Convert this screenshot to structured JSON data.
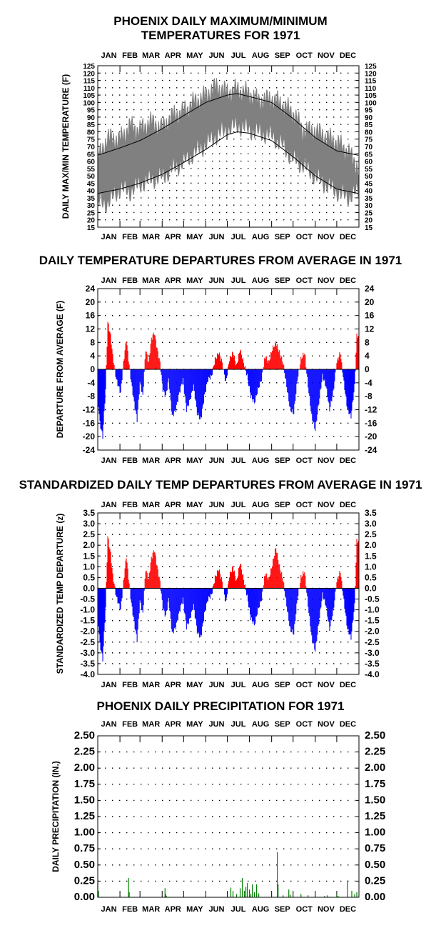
{
  "months": [
    "JAN",
    "FEB",
    "MAR",
    "APR",
    "MAY",
    "JUN",
    "JUL",
    "AUG",
    "SEP",
    "OCT",
    "NOV",
    "DEC"
  ],
  "chart_data": [
    {
      "type": "area",
      "title": "PHOENIX DAILY MAXIMUM/MINIMUM TEMPERATURES FOR 1971",
      "title_lines": [
        "PHOENIX DAILY MAXIMUM/MINIMUM",
        "TEMPERATURES FOR 1971"
      ],
      "ylabel": "DAILY MAX/MIN TEMPERATURE (F)",
      "xlabel": "",
      "ylim": [
        15,
        125
      ],
      "y_ticks": [
        "125",
        "120",
        "115",
        "110",
        "105",
        "100",
        "95",
        "90",
        "85",
        "80",
        "75",
        "70",
        "65",
        "60",
        "55",
        "50",
        "45",
        "40",
        "35",
        "30",
        "25",
        "20",
        "15"
      ],
      "x_categories": [
        "JAN",
        "FEB",
        "MAR",
        "APR",
        "MAY",
        "JUN",
        "JUL",
        "AUG",
        "SEP",
        "OCT",
        "NOV",
        "DEC"
      ],
      "grid": "dotted",
      "colors": {
        "band": "#808080",
        "normals": "#000000"
      },
      "series": [
        {
          "name": "",
          "kind": "observed_max",
          "x_day": [
            1,
            15,
            32,
            46,
            60,
            74,
            91,
            105,
            121,
            135,
            152,
            166,
            182,
            196,
            213,
            227,
            244,
            258,
            274,
            288,
            305,
            319,
            335,
            350,
            365
          ],
          "values": [
            61,
            75,
            74,
            83,
            80,
            86,
            82,
            90,
            93,
            99,
            104,
            110,
            106,
            108,
            105,
            100,
            102,
            98,
            92,
            80,
            80,
            76,
            72,
            66,
            55
          ]
        },
        {
          "name": "",
          "kind": "observed_min",
          "x_day": [
            1,
            15,
            32,
            46,
            60,
            74,
            91,
            105,
            121,
            135,
            152,
            166,
            182,
            196,
            213,
            227,
            244,
            258,
            274,
            288,
            305,
            319,
            335,
            350,
            365
          ],
          "values": [
            33,
            32,
            42,
            40,
            45,
            48,
            50,
            55,
            60,
            66,
            72,
            78,
            82,
            85,
            82,
            80,
            78,
            72,
            62,
            58,
            50,
            45,
            40,
            36,
            40
          ]
        },
        {
          "name": "",
          "kind": "normal_max",
          "x_day": [
            1,
            32,
            60,
            91,
            121,
            152,
            182,
            196,
            213,
            244,
            274,
            305,
            335,
            365
          ],
          "values": [
            64,
            69,
            74,
            82,
            91,
            100,
            105,
            106,
            104,
            100,
            89,
            76,
            67,
            64
          ]
        },
        {
          "name": "",
          "kind": "normal_min",
          "x_day": [
            1,
            32,
            60,
            91,
            121,
            152,
            182,
            196,
            213,
            244,
            274,
            305,
            335,
            365
          ],
          "values": [
            38,
            41,
            45,
            51,
            59,
            68,
            78,
            80,
            79,
            74,
            63,
            50,
            41,
            38
          ]
        }
      ]
    },
    {
      "type": "bar",
      "title": "DAILY TEMPERATURE DEPARTURES FROM AVERAGE IN 1971",
      "ylabel": "DEPARTURE FROM AVERAGE (F)",
      "xlabel": "",
      "ylim": [
        -24,
        24
      ],
      "y_ticks": [
        "24",
        "20",
        "16",
        "12",
        "8",
        "4",
        "0",
        "-4",
        "-8",
        "-12",
        "-16",
        "-20",
        "-24"
      ],
      "x_categories": [
        "JAN",
        "FEB",
        "MAR",
        "APR",
        "MAY",
        "JUN",
        "JUL",
        "AUG",
        "SEP",
        "OCT",
        "NOV",
        "DEC"
      ],
      "grid": "dotted",
      "colors": {
        "positive": "#ff0000",
        "negative": "#0000ff"
      },
      "x_day": [
        1,
        4,
        8,
        12,
        15,
        19,
        22,
        27,
        33,
        37,
        41,
        44,
        48,
        52,
        56,
        60,
        64,
        68,
        72,
        76,
        80,
        84,
        88,
        92,
        96,
        100,
        105,
        110,
        115,
        120,
        125,
        130,
        135,
        140,
        145,
        150,
        155,
        160,
        165,
        170,
        175,
        180,
        185,
        190,
        195,
        200,
        205,
        210,
        215,
        220,
        225,
        230,
        235,
        240,
        245,
        250,
        255,
        260,
        265,
        270,
        275,
        280,
        285,
        290,
        295,
        300,
        305,
        310,
        315,
        320,
        325,
        330,
        335,
        340,
        345,
        350,
        355,
        360,
        363
      ],
      "values": [
        -8,
        -16,
        -20,
        -6,
        14,
        10,
        4,
        -3,
        -7,
        2,
        9,
        3,
        -4,
        -10,
        -15,
        -4,
        -8,
        6,
        2,
        9,
        11,
        6,
        2,
        -6,
        -8,
        -3,
        -14,
        -12,
        -7,
        -3,
        -12,
        -9,
        -5,
        -13,
        -15,
        -8,
        -3,
        -2,
        3,
        5,
        2,
        -4,
        3,
        5,
        1,
        6,
        2,
        -2,
        -8,
        -10,
        -6,
        -3,
        4,
        2,
        6,
        8,
        5,
        2,
        -5,
        -12,
        -13,
        -3,
        3,
        5,
        -5,
        -14,
        -18,
        -10,
        -2,
        -5,
        -12,
        -7,
        2,
        5,
        -4,
        -12,
        -14,
        -5,
        10
      ]
    },
    {
      "type": "bar",
      "title": "STANDARDIZED DAILY TEMP DEPARTURES FROM AVERAGE IN 1971",
      "ylabel": "STANDARDIZED TEMP DEPARTURE (z)",
      "xlabel": "",
      "ylim": [
        -4,
        3.5
      ],
      "y_ticks": [
        "3.5",
        "3.0",
        "2.5",
        "2.0",
        "1.5",
        "1.0",
        "0.5",
        "0.0",
        "-0.5",
        "-1.0",
        "-1.5",
        "-2.0",
        "-2.5",
        "-3.0",
        "-3.5",
        "-4.0"
      ],
      "x_categories": [
        "JAN",
        "FEB",
        "MAR",
        "APR",
        "MAY",
        "JUN",
        "JUL",
        "AUG",
        "SEP",
        "OCT",
        "NOV",
        "DEC"
      ],
      "grid": "dotted",
      "colors": {
        "positive": "#ff0000",
        "negative": "#0000ff"
      },
      "x_day": [
        1,
        4,
        8,
        12,
        15,
        19,
        22,
        27,
        33,
        37,
        41,
        44,
        48,
        52,
        56,
        60,
        64,
        68,
        72,
        76,
        80,
        84,
        88,
        92,
        96,
        100,
        105,
        110,
        115,
        120,
        125,
        130,
        135,
        140,
        145,
        150,
        155,
        160,
        165,
        170,
        175,
        180,
        185,
        190,
        195,
        200,
        205,
        210,
        215,
        220,
        225,
        230,
        235,
        240,
        245,
        250,
        255,
        260,
        265,
        270,
        275,
        280,
        285,
        290,
        295,
        300,
        305,
        310,
        315,
        320,
        325,
        330,
        335,
        340,
        345,
        350,
        355,
        360,
        363
      ],
      "values": [
        -1.2,
        -2.6,
        -3.3,
        -0.9,
        2.4,
        1.6,
        0.6,
        -0.4,
        -1.0,
        0.3,
        1.5,
        0.5,
        -0.7,
        -1.6,
        -2.4,
        -0.6,
        -1.2,
        0.9,
        0.4,
        1.4,
        1.8,
        1.0,
        0.3,
        -0.9,
        -1.3,
        -0.5,
        -2.1,
        -1.8,
        -1.1,
        -0.5,
        -1.8,
        -1.4,
        -0.8,
        -2.0,
        -2.3,
        -1.2,
        -0.5,
        -0.3,
        0.5,
        0.9,
        0.3,
        -0.7,
        0.6,
        1.0,
        0.3,
        1.2,
        0.4,
        -0.4,
        -1.4,
        -1.7,
        -1.0,
        -0.5,
        0.7,
        0.4,
        1.1,
        1.9,
        1.0,
        0.4,
        -0.8,
        -1.9,
        -2.1,
        -0.5,
        0.5,
        0.8,
        -0.8,
        -2.3,
        -2.9,
        -1.6,
        -0.3,
        -0.8,
        -1.9,
        -1.1,
        0.3,
        0.8,
        -0.6,
        -1.9,
        -2.3,
        -0.8,
        2.2
      ]
    },
    {
      "type": "bar",
      "title": "PHOENIX DAILY PRECIPITATION FOR 1971",
      "ylabel": "DAILY PRECIPITATION (IN.)",
      "xlabel": "",
      "ylim": [
        0,
        2.5
      ],
      "y_ticks": [
        "2.50",
        "2.25",
        "2.00",
        "1.75",
        "1.50",
        "1.25",
        "1.00",
        "0.75",
        "0.50",
        "0.25",
        "0.00"
      ],
      "x_categories": [
        "JAN",
        "FEB",
        "MAR",
        "APR",
        "MAY",
        "JUN",
        "JUL",
        "AUG",
        "SEP",
        "OCT",
        "NOV",
        "DEC"
      ],
      "grid": "dotted",
      "colors": {
        "bars": "#008000"
      },
      "x_day": [
        1,
        2,
        44,
        45,
        95,
        96,
        97,
        187,
        190,
        195,
        200,
        203,
        206,
        208,
        210,
        213,
        215,
        217,
        220,
        223,
        226,
        252,
        253,
        260,
        268,
        270,
        285,
        295,
        318,
        322,
        335,
        337,
        350,
        356,
        360,
        363
      ],
      "values": [
        0.22,
        0.1,
        0.3,
        0.08,
        0.14,
        0.05,
        0.02,
        0.15,
        0.1,
        0.05,
        0.14,
        0.3,
        0.1,
        0.16,
        0.22,
        0.12,
        0.05,
        0.2,
        0.08,
        0.2,
        0.06,
        0.7,
        0.2,
        0.03,
        0.12,
        0.04,
        0.05,
        0.03,
        0.02,
        0.03,
        0.04,
        0.02,
        0.26,
        0.1,
        0.05,
        0.08
      ]
    }
  ]
}
